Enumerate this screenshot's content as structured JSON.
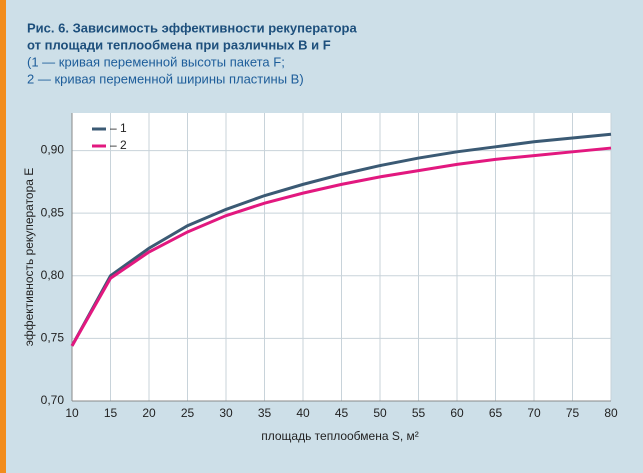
{
  "chart_data": {
    "type": "line",
    "title": [
      "Рис. 6. Зависимость эффективности рекуператора",
      "от площади теплообмена при различных B и F"
    ],
    "subtitle": [
      "(1 — кривая переменной высоты пакета F;",
      "2 — кривая переменной ширины пластины B)"
    ],
    "x_label": "площадь теплообмена S, м²",
    "y_label": "эффективность рекуператора E",
    "x": [
      10,
      15,
      20,
      25,
      30,
      35,
      40,
      45,
      50,
      55,
      60,
      65,
      70,
      75,
      80
    ],
    "series": [
      {
        "name": "– 1",
        "color": "#3b5a74",
        "values": [
          0.744,
          0.8,
          0.822,
          0.84,
          0.853,
          0.864,
          0.873,
          0.881,
          0.888,
          0.894,
          0.899,
          0.903,
          0.907,
          0.91,
          0.913
        ]
      },
      {
        "name": "– 2",
        "color": "#e2187f",
        "values": [
          0.744,
          0.798,
          0.819,
          0.835,
          0.848,
          0.858,
          0.866,
          0.873,
          0.879,
          0.884,
          0.889,
          0.893,
          0.896,
          0.899,
          0.902
        ]
      }
    ],
    "xlim": [
      10,
      80
    ],
    "xticks": [
      10,
      15,
      20,
      25,
      30,
      35,
      40,
      45,
      50,
      55,
      60,
      65,
      70,
      75,
      80
    ],
    "ylim": [
      0.7,
      0.93
    ],
    "yticks": [
      {
        "value": 0.7,
        "label": "0,70"
      },
      {
        "value": 0.75,
        "label": "0,75"
      },
      {
        "value": 0.8,
        "label": "0,80"
      },
      {
        "value": 0.85,
        "label": "0,85"
      },
      {
        "value": 0.9,
        "label": "0,90"
      }
    ],
    "grid": true,
    "legend": "upper left"
  }
}
